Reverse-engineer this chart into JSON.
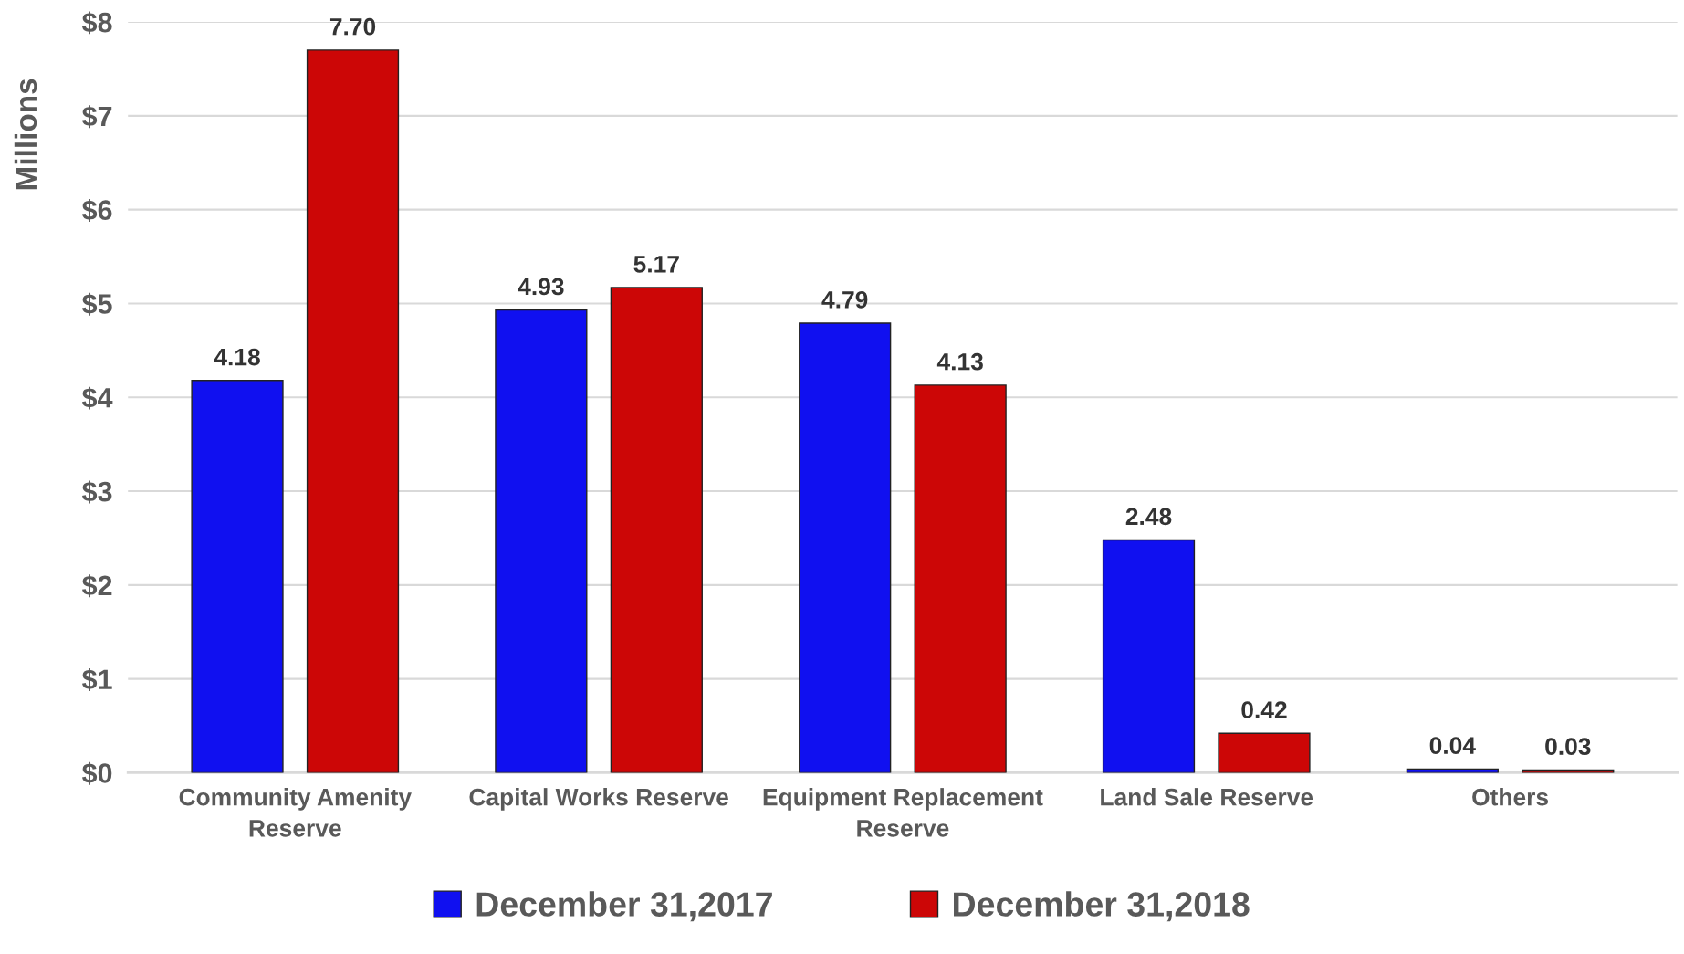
{
  "chart_data": {
    "type": "bar",
    "ylabel": "Millions",
    "categories": [
      "Community Amenity\nReserve",
      "Capital Works Reserve",
      "Equipment Replacement\nReserve",
      "Land Sale Reserve",
      "Others"
    ],
    "series": [
      {
        "name": "December 31,2017",
        "color": "#1010f0",
        "values": [
          4.18,
          4.93,
          4.79,
          2.48,
          0.04
        ],
        "value_labels": [
          "4.18",
          "4.93",
          "4.79",
          "2.48",
          "0.04"
        ]
      },
      {
        "name": "December 31,2018",
        "color": "#cc0606",
        "values": [
          7.7,
          5.17,
          4.13,
          0.42,
          0.03
        ],
        "value_labels": [
          "7.70",
          "5.17",
          "4.13",
          "0.42",
          "0.03"
        ]
      }
    ],
    "ylim": [
      0,
      8
    ],
    "yticks": [
      {
        "value": 0,
        "label": "$0"
      },
      {
        "value": 1,
        "label": "$1"
      },
      {
        "value": 2,
        "label": "$2"
      },
      {
        "value": 3,
        "label": "$3"
      },
      {
        "value": 4,
        "label": "$4"
      },
      {
        "value": 5,
        "label": "$5"
      },
      {
        "value": 6,
        "label": "$6"
      },
      {
        "value": 7,
        "label": "$7"
      },
      {
        "value": 8,
        "label": "$8"
      }
    ],
    "grid": "y",
    "legend": "bottom"
  }
}
